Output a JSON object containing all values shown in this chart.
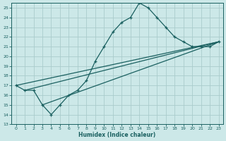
{
  "xlabel": "Humidex (Indice chaleur)",
  "xlim": [
    -0.5,
    23.5
  ],
  "ylim": [
    13,
    25.5
  ],
  "xticks": [
    0,
    1,
    2,
    3,
    4,
    5,
    6,
    7,
    8,
    9,
    10,
    11,
    12,
    13,
    14,
    15,
    16,
    17,
    18,
    19,
    20,
    21,
    22,
    23
  ],
  "yticks": [
    13,
    14,
    15,
    16,
    17,
    18,
    19,
    20,
    21,
    22,
    23,
    24,
    25
  ],
  "bg_color": "#cce8e8",
  "grid_color": "#aacccc",
  "line_color": "#1a6060",
  "curve_x": [
    0,
    1,
    2,
    3,
    4,
    5,
    6,
    7,
    8,
    9,
    10,
    11,
    12,
    13,
    14,
    15,
    16,
    17,
    18,
    19,
    20,
    21,
    22,
    23
  ],
  "curve_y": [
    17.0,
    16.5,
    16.5,
    15.0,
    14.0,
    15.0,
    16.0,
    16.5,
    17.5,
    19.5,
    21.0,
    22.5,
    23.5,
    24.0,
    25.5,
    25.0,
    24.0,
    23.0,
    22.0,
    21.5,
    21.0,
    21.0,
    21.0,
    21.5
  ],
  "line1_x": [
    0,
    23
  ],
  "line1_y": [
    17.0,
    21.5
  ],
  "line2_x": [
    1,
    23
  ],
  "line2_y": [
    16.5,
    21.5
  ],
  "line3_x": [
    3,
    23
  ],
  "line3_y": [
    15.0,
    21.5
  ]
}
